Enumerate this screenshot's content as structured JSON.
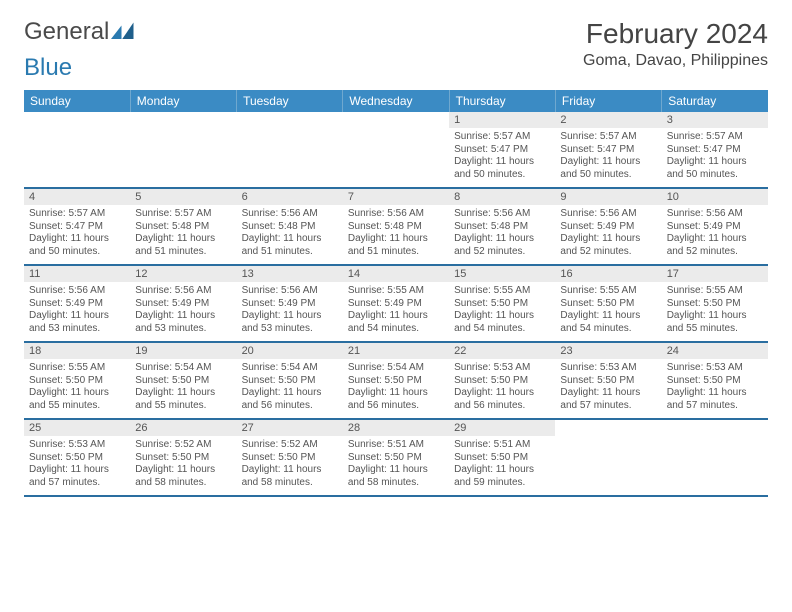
{
  "logo": {
    "text1": "General",
    "text2": "Blue"
  },
  "title": "February 2024",
  "location": "Goma, Davao, Philippines",
  "colors": {
    "header_bg": "#3b8bc4",
    "header_text": "#ffffff",
    "row_border": "#2a6ea0",
    "daynum_bg": "#ebebeb",
    "text_color": "#555555",
    "logo_blue": "#2a7ab0"
  },
  "weekdays": [
    "Sunday",
    "Monday",
    "Tuesday",
    "Wednesday",
    "Thursday",
    "Friday",
    "Saturday"
  ],
  "weeks": [
    [
      {
        "n": "",
        "sunrise": "",
        "sunset": "",
        "daylight": ""
      },
      {
        "n": "",
        "sunrise": "",
        "sunset": "",
        "daylight": ""
      },
      {
        "n": "",
        "sunrise": "",
        "sunset": "",
        "daylight": ""
      },
      {
        "n": "",
        "sunrise": "",
        "sunset": "",
        "daylight": ""
      },
      {
        "n": "1",
        "sunrise": "Sunrise: 5:57 AM",
        "sunset": "Sunset: 5:47 PM",
        "daylight": "Daylight: 11 hours and 50 minutes."
      },
      {
        "n": "2",
        "sunrise": "Sunrise: 5:57 AM",
        "sunset": "Sunset: 5:47 PM",
        "daylight": "Daylight: 11 hours and 50 minutes."
      },
      {
        "n": "3",
        "sunrise": "Sunrise: 5:57 AM",
        "sunset": "Sunset: 5:47 PM",
        "daylight": "Daylight: 11 hours and 50 minutes."
      }
    ],
    [
      {
        "n": "4",
        "sunrise": "Sunrise: 5:57 AM",
        "sunset": "Sunset: 5:47 PM",
        "daylight": "Daylight: 11 hours and 50 minutes."
      },
      {
        "n": "5",
        "sunrise": "Sunrise: 5:57 AM",
        "sunset": "Sunset: 5:48 PM",
        "daylight": "Daylight: 11 hours and 51 minutes."
      },
      {
        "n": "6",
        "sunrise": "Sunrise: 5:56 AM",
        "sunset": "Sunset: 5:48 PM",
        "daylight": "Daylight: 11 hours and 51 minutes."
      },
      {
        "n": "7",
        "sunrise": "Sunrise: 5:56 AM",
        "sunset": "Sunset: 5:48 PM",
        "daylight": "Daylight: 11 hours and 51 minutes."
      },
      {
        "n": "8",
        "sunrise": "Sunrise: 5:56 AM",
        "sunset": "Sunset: 5:48 PM",
        "daylight": "Daylight: 11 hours and 52 minutes."
      },
      {
        "n": "9",
        "sunrise": "Sunrise: 5:56 AM",
        "sunset": "Sunset: 5:49 PM",
        "daylight": "Daylight: 11 hours and 52 minutes."
      },
      {
        "n": "10",
        "sunrise": "Sunrise: 5:56 AM",
        "sunset": "Sunset: 5:49 PM",
        "daylight": "Daylight: 11 hours and 52 minutes."
      }
    ],
    [
      {
        "n": "11",
        "sunrise": "Sunrise: 5:56 AM",
        "sunset": "Sunset: 5:49 PM",
        "daylight": "Daylight: 11 hours and 53 minutes."
      },
      {
        "n": "12",
        "sunrise": "Sunrise: 5:56 AM",
        "sunset": "Sunset: 5:49 PM",
        "daylight": "Daylight: 11 hours and 53 minutes."
      },
      {
        "n": "13",
        "sunrise": "Sunrise: 5:56 AM",
        "sunset": "Sunset: 5:49 PM",
        "daylight": "Daylight: 11 hours and 53 minutes."
      },
      {
        "n": "14",
        "sunrise": "Sunrise: 5:55 AM",
        "sunset": "Sunset: 5:49 PM",
        "daylight": "Daylight: 11 hours and 54 minutes."
      },
      {
        "n": "15",
        "sunrise": "Sunrise: 5:55 AM",
        "sunset": "Sunset: 5:50 PM",
        "daylight": "Daylight: 11 hours and 54 minutes."
      },
      {
        "n": "16",
        "sunrise": "Sunrise: 5:55 AM",
        "sunset": "Sunset: 5:50 PM",
        "daylight": "Daylight: 11 hours and 54 minutes."
      },
      {
        "n": "17",
        "sunrise": "Sunrise: 5:55 AM",
        "sunset": "Sunset: 5:50 PM",
        "daylight": "Daylight: 11 hours and 55 minutes."
      }
    ],
    [
      {
        "n": "18",
        "sunrise": "Sunrise: 5:55 AM",
        "sunset": "Sunset: 5:50 PM",
        "daylight": "Daylight: 11 hours and 55 minutes."
      },
      {
        "n": "19",
        "sunrise": "Sunrise: 5:54 AM",
        "sunset": "Sunset: 5:50 PM",
        "daylight": "Daylight: 11 hours and 55 minutes."
      },
      {
        "n": "20",
        "sunrise": "Sunrise: 5:54 AM",
        "sunset": "Sunset: 5:50 PM",
        "daylight": "Daylight: 11 hours and 56 minutes."
      },
      {
        "n": "21",
        "sunrise": "Sunrise: 5:54 AM",
        "sunset": "Sunset: 5:50 PM",
        "daylight": "Daylight: 11 hours and 56 minutes."
      },
      {
        "n": "22",
        "sunrise": "Sunrise: 5:53 AM",
        "sunset": "Sunset: 5:50 PM",
        "daylight": "Daylight: 11 hours and 56 minutes."
      },
      {
        "n": "23",
        "sunrise": "Sunrise: 5:53 AM",
        "sunset": "Sunset: 5:50 PM",
        "daylight": "Daylight: 11 hours and 57 minutes."
      },
      {
        "n": "24",
        "sunrise": "Sunrise: 5:53 AM",
        "sunset": "Sunset: 5:50 PM",
        "daylight": "Daylight: 11 hours and 57 minutes."
      }
    ],
    [
      {
        "n": "25",
        "sunrise": "Sunrise: 5:53 AM",
        "sunset": "Sunset: 5:50 PM",
        "daylight": "Daylight: 11 hours and 57 minutes."
      },
      {
        "n": "26",
        "sunrise": "Sunrise: 5:52 AM",
        "sunset": "Sunset: 5:50 PM",
        "daylight": "Daylight: 11 hours and 58 minutes."
      },
      {
        "n": "27",
        "sunrise": "Sunrise: 5:52 AM",
        "sunset": "Sunset: 5:50 PM",
        "daylight": "Daylight: 11 hours and 58 minutes."
      },
      {
        "n": "28",
        "sunrise": "Sunrise: 5:51 AM",
        "sunset": "Sunset: 5:50 PM",
        "daylight": "Daylight: 11 hours and 58 minutes."
      },
      {
        "n": "29",
        "sunrise": "Sunrise: 5:51 AM",
        "sunset": "Sunset: 5:50 PM",
        "daylight": "Daylight: 11 hours and 59 minutes."
      },
      {
        "n": "",
        "sunrise": "",
        "sunset": "",
        "daylight": ""
      },
      {
        "n": "",
        "sunrise": "",
        "sunset": "",
        "daylight": ""
      }
    ]
  ]
}
